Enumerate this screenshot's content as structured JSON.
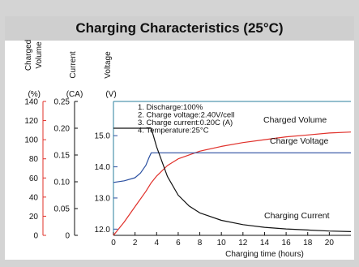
{
  "title": "Charging Characteristics (25°C)",
  "colors": {
    "frame": "#d4d4d4",
    "red": "#e0302a",
    "blue": "#2a4fa0",
    "black": "#111111",
    "teal_rule": "#2a7f9e"
  },
  "chart_data": {
    "type": "line",
    "xlabel": "Charging time (hours)",
    "xlim": [
      0,
      22
    ],
    "xticks": [
      "0",
      "2",
      "4",
      "6",
      "8",
      "10",
      "12",
      "14",
      "16",
      "18",
      "20"
    ],
    "axes": {
      "charged_volume": {
        "label": "Charged Volume",
        "unit": "(%)",
        "range": [
          0,
          140
        ],
        "ticks": [
          "0",
          "20",
          "40",
          "60",
          "80",
          "100",
          "120",
          "140"
        ]
      },
      "current": {
        "label": "Current",
        "unit": "(CA)",
        "range": [
          0,
          0.25
        ],
        "ticks": [
          "0",
          "0.05",
          "0.10",
          "0.15",
          "0.20",
          "0.25"
        ]
      },
      "voltage": {
        "label": "Voltage",
        "unit": "(V)",
        "range": [
          11.8,
          16.1
        ],
        "ticks": [
          "12.0",
          "13.0",
          "14.0",
          "15.0"
        ]
      }
    },
    "notes": [
      "1. Discharge:100%",
      "2. Charge voltage:2.40V/cell",
      "3. Charge current:0.20C (A)",
      "4. Temperature:25°C"
    ],
    "series": [
      {
        "name": "Charged Volume",
        "axis": "charged_volume",
        "color": "#e0302a",
        "x": [
          0,
          1,
          2,
          3,
          3.5,
          4,
          5,
          6,
          8,
          10,
          12,
          14,
          16,
          18,
          20,
          22
        ],
        "y": [
          0,
          14,
          30,
          46,
          55,
          62,
          73,
          80,
          88,
          93,
          97,
          100,
          103,
          105,
          107,
          108
        ]
      },
      {
        "name": "Charge Voltage",
        "axis": "voltage",
        "color": "#2a4fa0",
        "x": [
          0,
          1,
          2,
          2.5,
          3,
          3.3,
          3.5,
          4,
          6,
          10,
          14,
          18,
          22
        ],
        "y": [
          13.5,
          13.55,
          13.65,
          13.8,
          14.05,
          14.3,
          14.45,
          14.45,
          14.45,
          14.45,
          14.45,
          14.45,
          14.45
        ]
      },
      {
        "name": "Charging Current",
        "axis": "current",
        "color": "#111111",
        "x": [
          0,
          1,
          2,
          3,
          3.5,
          4,
          5,
          6,
          7,
          8,
          10,
          12,
          14,
          16,
          18,
          20,
          22
        ],
        "y": [
          0.2,
          0.2,
          0.2,
          0.2,
          0.2,
          0.165,
          0.11,
          0.075,
          0.055,
          0.042,
          0.028,
          0.02,
          0.015,
          0.012,
          0.01,
          0.008,
          0.007
        ]
      }
    ]
  }
}
